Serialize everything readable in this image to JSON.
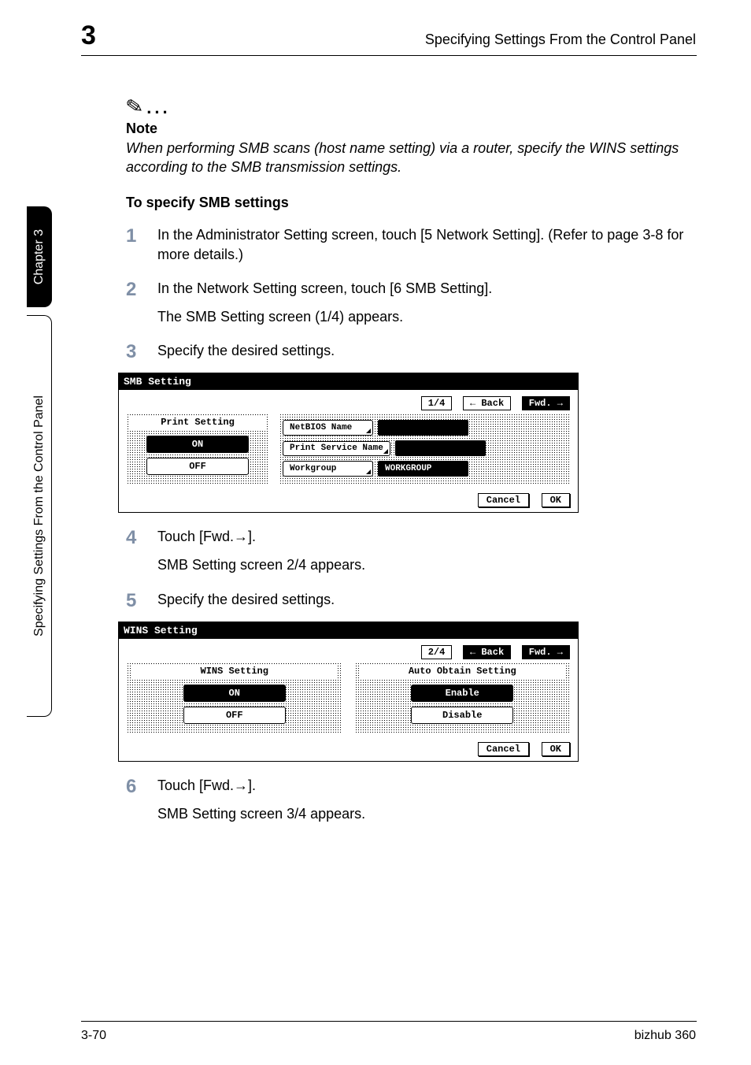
{
  "header": {
    "chapter_num": "3",
    "title": "Specifying Settings From the Control Panel"
  },
  "side": {
    "black": "Chapter 3",
    "white": "Specifying Settings From the Control Panel"
  },
  "note": {
    "label": "Note",
    "text": "When performing SMB scans (host name setting) via a router, specify the WINS settings according to the SMB transmission settings."
  },
  "section_title": "To specify SMB settings",
  "steps": {
    "s1": "In the Administrator Setting screen, touch [5 Network Setting]. (Refer to page 3-8 for more details.)",
    "s2": "In the Network Setting screen, touch [6 SMB Setting].",
    "s2_sub": "The SMB Setting screen (1/4) appears.",
    "s3": "Specify the desired settings.",
    "s4": "Touch [Fwd.→].",
    "s4_sub": "SMB Setting screen 2/4 appears.",
    "s5": "Specify the desired settings.",
    "s6": "Touch [Fwd.→].",
    "s6_sub": "SMB Setting screen 3/4 appears."
  },
  "panel1": {
    "title": "SMB Setting",
    "page": "1/4",
    "back": "Back",
    "fwd": "Fwd.",
    "left_heading": "Print Setting",
    "on": "ON",
    "off": "OFF",
    "netbios": "NetBIOS Name",
    "print_service": "Print Service Name",
    "workgroup": "Workgroup",
    "workgroup_val": "WORKGROUP",
    "cancel": "Cancel",
    "ok": "OK"
  },
  "panel2": {
    "title": "WINS Setting",
    "page": "2/4",
    "back": "Back",
    "fwd": "Fwd.",
    "left_heading": "WINS Setting",
    "right_heading": "Auto Obtain Setting",
    "on": "ON",
    "off": "OFF",
    "enable": "Enable",
    "disable": "Disable",
    "cancel": "Cancel",
    "ok": "OK"
  },
  "footer": {
    "left": "3-70",
    "right": "bizhub 360"
  },
  "colors": {
    "step_num": "#7f8fa6",
    "text": "#000000",
    "bg": "#ffffff"
  }
}
